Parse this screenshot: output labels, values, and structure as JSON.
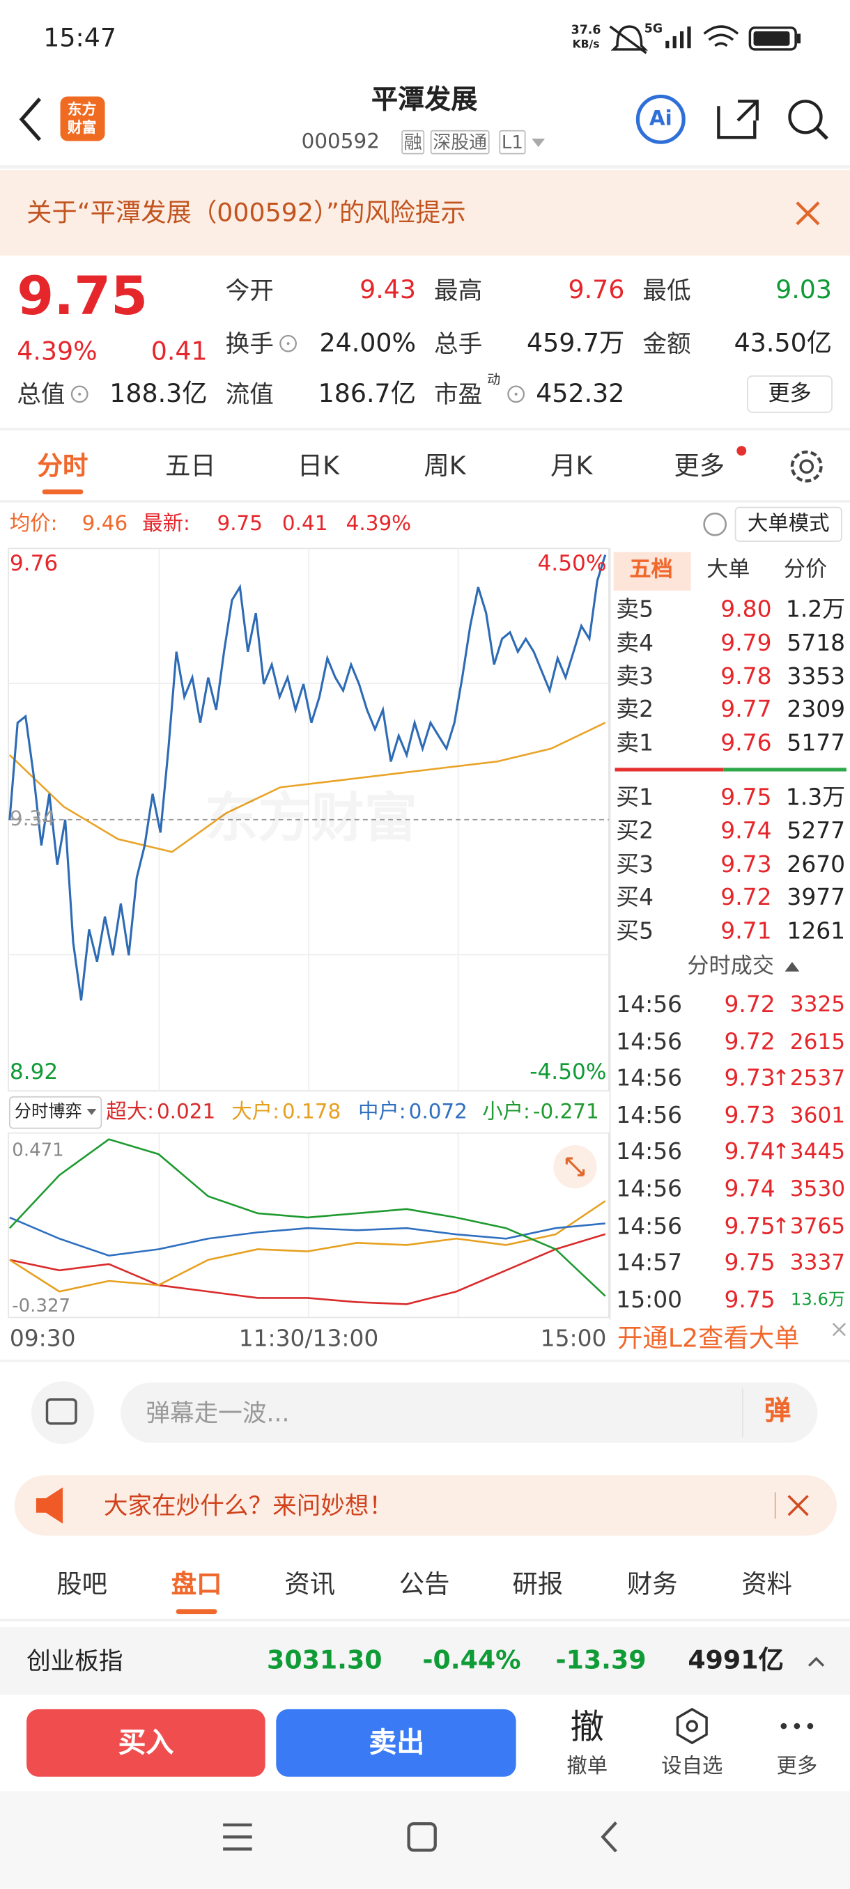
{
  "status_bar": {
    "time": "15:47",
    "speed": "37.6",
    "speed_unit": "KB/s",
    "network": "5G"
  },
  "header": {
    "logo_lines": [
      "东方",
      "财富"
    ],
    "title": "平潭发展",
    "code": "000592",
    "tags": [
      "融",
      "深股通",
      "L1"
    ],
    "ai": "Ai"
  },
  "risk_notice": "关于“平潭发展（000592）”的风险提示",
  "quote": {
    "price": "9.75",
    "change_pct": "4.39%",
    "change": "0.41",
    "rows": [
      [
        {
          "label": "今开",
          "value": "9.43",
          "color": "red"
        },
        {
          "label": "最高",
          "value": "9.76",
          "color": "red"
        },
        {
          "label": "最低",
          "value": "9.03",
          "color": "green"
        }
      ],
      [
        {
          "label": "换手",
          "value": "24.00%",
          "info_icon": true
        },
        {
          "label": "总手",
          "value": "459.7万"
        },
        {
          "label": "金额",
          "value": "43.50亿"
        }
      ],
      [
        {
          "label": "总值",
          "value": "188.3亿",
          "info_icon": true
        },
        {
          "label": "流值",
          "value": "186.7亿"
        },
        {
          "label": "市盈",
          "sup": "动",
          "value": "452.32",
          "info_icon": true
        }
      ]
    ],
    "more": "更多"
  },
  "chart_tabs": {
    "items": [
      "分时",
      "五日",
      "日K",
      "周K",
      "月K",
      "更多"
    ],
    "active": 0
  },
  "summary": {
    "avg_label": "均价:",
    "avg": "9.46",
    "last_label": "最新:",
    "last": "9.75",
    "change": "0.41",
    "pct": "4.39%",
    "mode_button": "大单模式"
  },
  "intraday": {
    "ylim": [
      8.92,
      9.76
    ],
    "prev_close": 9.34,
    "pct_high": "4.50%",
    "pct_low": "-4.50%",
    "watermark": "东方财富",
    "price": [
      9.34,
      9.49,
      9.5,
      9.41,
      9.3,
      9.38,
      9.27,
      9.34,
      9.15,
      9.06,
      9.17,
      9.12,
      9.19,
      9.13,
      9.21,
      9.13,
      9.25,
      9.3,
      9.38,
      9.32,
      9.45,
      9.6,
      9.53,
      9.56,
      9.49,
      9.56,
      9.51,
      9.6,
      9.68,
      9.7,
      9.6,
      9.66,
      9.55,
      9.58,
      9.53,
      9.56,
      9.51,
      9.55,
      9.49,
      9.53,
      9.59,
      9.56,
      9.54,
      9.58,
      9.55,
      9.51,
      9.48,
      9.51,
      9.43,
      9.47,
      9.44,
      9.49,
      9.45,
      9.49,
      9.47,
      9.45,
      9.49,
      9.56,
      9.64,
      9.7,
      9.66,
      9.58,
      9.62,
      9.63,
      9.6,
      9.62,
      9.6,
      9.57,
      9.54,
      9.59,
      9.56,
      9.6,
      9.64,
      9.62,
      9.71,
      9.75
    ],
    "avg": [
      9.44,
      9.36,
      9.31,
      9.29,
      9.35,
      9.39,
      9.4,
      9.41,
      9.42,
      9.43,
      9.45,
      9.49
    ],
    "time_labels": [
      "09:30",
      "11:30/13:00",
      "15:00"
    ]
  },
  "flow": {
    "selector": "分时博弈",
    "ylim": [
      -0.327,
      0.471
    ],
    "series": [
      {
        "name": "超大:",
        "value": 0.021,
        "color": "#d92b2b",
        "values": [
          -0.1,
          -0.15,
          -0.12,
          -0.22,
          -0.25,
          -0.28,
          -0.28,
          -0.3,
          -0.31,
          -0.25,
          -0.15,
          -0.05,
          0.021
        ]
      },
      {
        "name": "大户:",
        "value": 0.178,
        "color": "#e6a020",
        "values": [
          -0.1,
          -0.25,
          -0.2,
          -0.22,
          -0.1,
          -0.05,
          -0.06,
          -0.02,
          -0.03,
          0.0,
          -0.03,
          0.02,
          0.178
        ]
      },
      {
        "name": "中户:",
        "value": 0.072,
        "color": "#2f6fc0",
        "values": [
          0.1,
          0.0,
          -0.08,
          -0.05,
          0.0,
          0.03,
          0.05,
          0.04,
          0.05,
          0.02,
          0.0,
          0.05,
          0.072
        ]
      },
      {
        "name": "小户:",
        "value": -0.271,
        "color": "#1f9a30",
        "values": [
          0.05,
          0.3,
          0.47,
          0.4,
          0.2,
          0.12,
          0.1,
          0.12,
          0.14,
          0.1,
          0.05,
          -0.05,
          -0.271
        ]
      }
    ]
  },
  "order_book": {
    "tabs": [
      "五档",
      "大单",
      "分价"
    ],
    "active": 0,
    "asks": [
      {
        "label": "卖5",
        "price": "9.80",
        "volume": "1.2万"
      },
      {
        "label": "卖4",
        "price": "9.79",
        "volume": "5718"
      },
      {
        "label": "卖3",
        "price": "9.78",
        "volume": "3353"
      },
      {
        "label": "卖2",
        "price": "9.77",
        "volume": "2309"
      },
      {
        "label": "卖1",
        "price": "9.76",
        "volume": "5177"
      }
    ],
    "bids": [
      {
        "label": "买1",
        "price": "9.75",
        "volume": "1.3万"
      },
      {
        "label": "买2",
        "price": "9.74",
        "volume": "5277"
      },
      {
        "label": "买3",
        "price": "9.73",
        "volume": "2670"
      },
      {
        "label": "买4",
        "price": "9.72",
        "volume": "3977"
      },
      {
        "label": "买5",
        "price": "9.71",
        "volume": "1261"
      }
    ]
  },
  "trades": {
    "title": "分时成交",
    "rows": [
      {
        "time": "14:56",
        "price": "9.72",
        "volume": "3325",
        "color": "red"
      },
      {
        "time": "14:56",
        "price": "9.72",
        "volume": "2615",
        "color": "red"
      },
      {
        "time": "14:56",
        "price": "9.73",
        "volume": "↑2537",
        "color": "red"
      },
      {
        "time": "14:56",
        "price": "9.73",
        "volume": "3601",
        "color": "red"
      },
      {
        "time": "14:56",
        "price": "9.74",
        "volume": "↑3445",
        "color": "red"
      },
      {
        "time": "14:56",
        "price": "9.74",
        "volume": "3530",
        "color": "red"
      },
      {
        "time": "14:56",
        "price": "9.75",
        "volume": "↑3765",
        "color": "red"
      },
      {
        "time": "14:57",
        "price": "9.75",
        "volume": "3337",
        "color": "red"
      },
      {
        "time": "15:00",
        "price": "9.75",
        "volume": "13.6万",
        "color": "green"
      }
    ]
  },
  "l2_banner": "开通L2查看大单",
  "danmaku": {
    "placeholder": "弹幕走一波...",
    "button": "弹"
  },
  "promo": "大家在炒什么？来问妙想！",
  "bottom_tabs": {
    "items": [
      "股吧",
      "盘口",
      "资讯",
      "公告",
      "研报",
      "财务",
      "资料"
    ],
    "active": 1
  },
  "index_bar": {
    "name": "创业板指",
    "value": "3031.30",
    "pct": "-0.44%",
    "change": "-13.39",
    "amount": "4991亿"
  },
  "actions": {
    "buy": "买入",
    "sell": "卖出",
    "cancel_icon": "撤",
    "cancel": "撤单",
    "watch": "设自选",
    "more": "更多"
  }
}
